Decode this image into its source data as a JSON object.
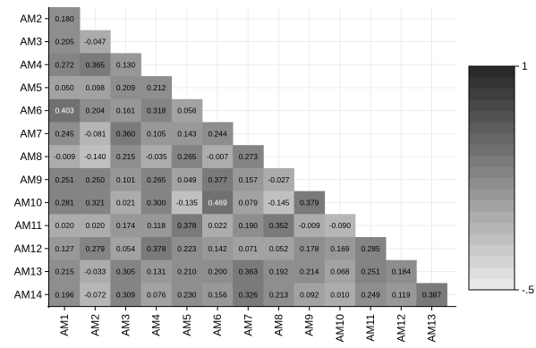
{
  "chart_data": {
    "type": "heatmap",
    "row_labels": [
      "AM2",
      "AM3",
      "AM4",
      "AM5",
      "AM6",
      "AM7",
      "AM8",
      "AM9",
      "AM10",
      "AM11",
      "AM12",
      "AM13",
      "AM14"
    ],
    "col_labels": [
      "AM1",
      "AM2",
      "AM3",
      "AM4",
      "AM5",
      "AM6",
      "AM7",
      "AM8",
      "AM9",
      "AM10",
      "AM11",
      "AM12",
      "AM13"
    ],
    "values": [
      [
        0.18
      ],
      [
        0.205,
        -0.047
      ],
      [
        0.272,
        0.365,
        0.13
      ],
      [
        0.05,
        0.098,
        0.209,
        0.212
      ],
      [
        0.403,
        0.204,
        0.161,
        0.318,
        0.056
      ],
      [
        0.245,
        -0.081,
        0.36,
        0.105,
        0.143,
        0.244
      ],
      [
        -0.009,
        -0.14,
        0.215,
        -0.035,
        0.265,
        -0.007,
        0.273
      ],
      [
        0.251,
        0.25,
        0.101,
        0.265,
        0.049,
        0.377,
        0.157,
        -0.027
      ],
      [
        0.281,
        0.321,
        0.021,
        0.3,
        -0.135,
        0.469,
        0.079,
        -0.145,
        0.379
      ],
      [
        0.02,
        0.02,
        0.174,
        0.118,
        0.378,
        0.022,
        0.19,
        0.352,
        -0.009,
        -0.09
      ],
      [
        0.127,
        0.279,
        0.054,
        0.378,
        0.223,
        0.142,
        0.071,
        0.052,
        0.178,
        0.169,
        0.285
      ],
      [
        0.215,
        -0.033,
        0.305,
        0.131,
        0.21,
        0.2,
        0.363,
        0.192,
        0.214,
        0.068,
        0.251,
        0.184
      ],
      [
        0.196,
        -0.072,
        0.309,
        0.076,
        0.23,
        0.156,
        0.326,
        0.213,
        0.092,
        0.01,
        0.249,
        0.119,
        0.387
      ]
    ],
    "labels": [
      [
        "0.180"
      ],
      [
        "0.205",
        "-0.047"
      ],
      [
        "0.272",
        "0.365",
        "0.130"
      ],
      [
        "0.050",
        "0.098",
        "0.209",
        "0.212"
      ],
      [
        "0.403",
        "0.204",
        "0.161",
        "0.318",
        "0.056"
      ],
      [
        "0.245",
        "-0.081",
        "0.360",
        "0.105",
        "0.143",
        "0.244"
      ],
      [
        "-0.009",
        "-0.140",
        "0.215",
        "-0.035",
        "0.265",
        "-0.007",
        "0.273"
      ],
      [
        "0.251",
        "0.250",
        "0.101",
        "0.265",
        "0.049",
        "0.377",
        "0.157",
        "-0.027"
      ],
      [
        "0.281",
        "0.321",
        "0.021",
        "0.300",
        "-0.135",
        "0.469",
        "0.079",
        "-0.145",
        "0.379"
      ],
      [
        "0.020",
        "0.020",
        "0.174",
        "0.118",
        "0.378",
        "0.022",
        "0.190",
        "0.352",
        "-0.009",
        "-0.090"
      ],
      [
        "0.127",
        "0.279",
        "0.054",
        "0.378",
        "0.223",
        "0.142",
        "0.071",
        "0.052",
        "0.178",
        "0.169",
        "0.285"
      ],
      [
        "0.215",
        "-0.033",
        "0.305",
        "0.131",
        "0.210",
        "0.200",
        "0.363",
        "0.192",
        "0.214",
        "0.068",
        "0.251",
        "0.184"
      ],
      [
        "0.196",
        "-0.072",
        "0.309",
        "0.076",
        "0.230",
        "0.156",
        "0.326",
        "0.213",
        "0.092",
        "0.010",
        "0.249",
        "0.119",
        "0.387"
      ]
    ],
    "color_range": [
      -0.5,
      1
    ],
    "color_steps": 20,
    "color_light": "#e8e8e8",
    "color_dark": "#2a2a2a",
    "legend": {
      "position": "right",
      "max_label": "1",
      "min_label": "-.5"
    },
    "grid": true
  }
}
